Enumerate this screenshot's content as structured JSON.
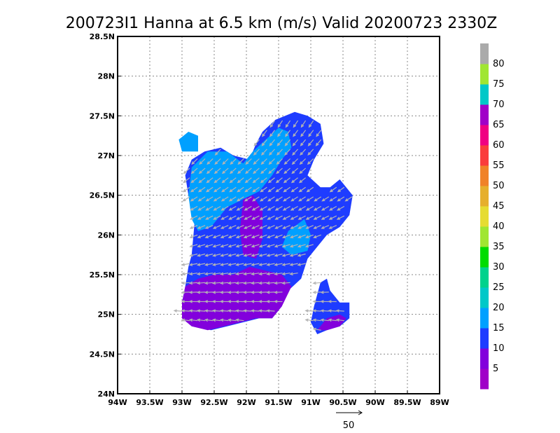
{
  "chart_data": {
    "type": "wind-vector-field",
    "title": "200723I1 Hanna at 6.5 km (m/s) Valid 20200723 2330Z",
    "xlim": [
      -94,
      -89
    ],
    "ylim": [
      24,
      28.5
    ],
    "x_ticks": [
      -94,
      -93.5,
      -93,
      -92.5,
      -92,
      -91.5,
      -91,
      -90.5,
      -90,
      -89.5,
      -89
    ],
    "x_tick_labels": [
      "94W",
      "93.5W",
      "93W",
      "92.5W",
      "92W",
      "91.5W",
      "91W",
      "90.5W",
      "90W",
      "89.5W",
      "89W"
    ],
    "y_ticks": [
      24,
      24.5,
      25,
      25.5,
      26,
      26.5,
      27,
      27.5,
      28,
      28.5
    ],
    "y_tick_labels": [
      "24N",
      "24.5N",
      "25N",
      "25.5N",
      "26N",
      "26.5N",
      "27N",
      "27.5N",
      "28N",
      "28.5N"
    ],
    "grid": true,
    "colorbar": {
      "boundary_labels": [
        "5",
        "10",
        "15",
        "20",
        "25",
        "30",
        "35",
        "40",
        "45",
        "50",
        "55",
        "60",
        "65",
        "70",
        "75",
        "80"
      ],
      "colors": [
        "#a000c8",
        "#8200dc",
        "#1e3cff",
        "#00a0ff",
        "#00c8c8",
        "#00d28c",
        "#00dc00",
        "#a0e632",
        "#e6dc32",
        "#e6af2d",
        "#f08228",
        "#fa3c3c",
        "#f00082",
        "#a000c8",
        "#00c8c8",
        "#a0e632",
        "#aaaaaa"
      ]
    },
    "reference_vector": {
      "label": "50",
      "speed": 50
    },
    "regions": [
      {
        "name": "tropical-storm-echo-main",
        "speed_class": "10-15",
        "color": "#1e3cff",
        "polygon": [
          [
            -92.9,
            25.6
          ],
          [
            -92.85,
            25.75
          ],
          [
            -92.8,
            26.2
          ],
          [
            -92.9,
            26.5
          ],
          [
            -92.95,
            26.75
          ],
          [
            -92.85,
            26.95
          ],
          [
            -92.65,
            27.05
          ],
          [
            -92.4,
            27.1
          ],
          [
            -92.2,
            27.0
          ],
          [
            -91.95,
            26.95
          ],
          [
            -91.85,
            27.15
          ],
          [
            -91.75,
            27.3
          ],
          [
            -91.55,
            27.45
          ],
          [
            -91.25,
            27.55
          ],
          [
            -91.05,
            27.5
          ],
          [
            -90.85,
            27.4
          ],
          [
            -90.8,
            27.15
          ],
          [
            -90.95,
            26.95
          ],
          [
            -91.05,
            26.75
          ],
          [
            -90.85,
            26.6
          ],
          [
            -90.7,
            26.6
          ],
          [
            -90.55,
            26.7
          ],
          [
            -90.35,
            26.5
          ],
          [
            -90.4,
            26.25
          ],
          [
            -90.55,
            26.1
          ],
          [
            -90.75,
            26.0
          ],
          [
            -90.9,
            25.85
          ],
          [
            -91.05,
            25.7
          ],
          [
            -91.15,
            25.45
          ],
          [
            -91.35,
            25.3
          ],
          [
            -91.45,
            25.1
          ],
          [
            -91.6,
            24.95
          ],
          [
            -91.8,
            24.95
          ],
          [
            -92.05,
            24.9
          ],
          [
            -92.3,
            24.85
          ],
          [
            -92.55,
            24.8
          ],
          [
            -92.8,
            24.85
          ],
          [
            -93.0,
            24.95
          ],
          [
            -93.0,
            25.15
          ],
          [
            -92.95,
            25.35
          ]
        ]
      },
      {
        "name": "southeast-band",
        "speed_class": "10-15",
        "color": "#1e3cff",
        "polygon": [
          [
            -90.95,
            25.1
          ],
          [
            -90.85,
            25.4
          ],
          [
            -90.75,
            25.45
          ],
          [
            -90.7,
            25.3
          ],
          [
            -90.55,
            25.15
          ],
          [
            -90.4,
            25.15
          ],
          [
            -90.4,
            24.95
          ],
          [
            -90.55,
            24.85
          ],
          [
            -90.75,
            24.8
          ],
          [
            -90.9,
            24.75
          ],
          [
            -91.0,
            24.9
          ]
        ]
      },
      {
        "name": "northwest-patches",
        "speed_class": "15-20",
        "color": "#00a0ff",
        "polygon": [
          [
            -93.05,
            27.2
          ],
          [
            -92.9,
            27.3
          ],
          [
            -92.75,
            27.25
          ],
          [
            -92.75,
            27.05
          ],
          [
            -92.85,
            27.05
          ],
          [
            -93.0,
            27.05
          ]
        ]
      },
      {
        "name": "northern-light-blue-area",
        "speed_class": "15-20",
        "color": "#00a0ff",
        "polygon": [
          [
            -92.9,
            26.5
          ],
          [
            -92.85,
            26.85
          ],
          [
            -92.6,
            27.05
          ],
          [
            -92.3,
            27.05
          ],
          [
            -92.05,
            26.9
          ],
          [
            -91.9,
            27.05
          ],
          [
            -91.7,
            27.2
          ],
          [
            -91.5,
            27.35
          ],
          [
            -91.35,
            27.3
          ],
          [
            -91.3,
            27.1
          ],
          [
            -91.45,
            26.95
          ],
          [
            -91.6,
            26.75
          ],
          [
            -91.8,
            26.55
          ],
          [
            -92.05,
            26.45
          ],
          [
            -92.3,
            26.35
          ],
          [
            -92.55,
            26.1
          ],
          [
            -92.75,
            26.05
          ],
          [
            -92.85,
            26.2
          ]
        ]
      },
      {
        "name": "central-light-blue-area",
        "speed_class": "15-20",
        "color": "#00a0ff",
        "polygon": [
          [
            -91.1,
            26.2
          ],
          [
            -91.0,
            26.0
          ],
          [
            -91.05,
            25.8
          ],
          [
            -91.3,
            25.75
          ],
          [
            -91.45,
            25.85
          ],
          [
            -91.35,
            26.05
          ]
        ]
      },
      {
        "name": "southern-core",
        "speed_class": "5-10",
        "color": "#8200dc",
        "polygon": [
          [
            -93.0,
            25.15
          ],
          [
            -92.95,
            25.35
          ],
          [
            -92.75,
            25.45
          ],
          [
            -92.5,
            25.5
          ],
          [
            -92.2,
            25.5
          ],
          [
            -91.95,
            25.6
          ],
          [
            -91.7,
            25.55
          ],
          [
            -91.45,
            25.5
          ],
          [
            -91.3,
            25.35
          ],
          [
            -91.45,
            25.1
          ],
          [
            -91.6,
            24.95
          ],
          [
            -91.85,
            24.95
          ],
          [
            -92.1,
            24.9
          ],
          [
            -92.35,
            24.85
          ],
          [
            -92.6,
            24.8
          ],
          [
            -92.85,
            24.85
          ],
          [
            -93.0,
            24.95
          ]
        ]
      },
      {
        "name": "central-core",
        "speed_class": "5-10",
        "color": "#8200dc",
        "polygon": [
          [
            -92.05,
            26.45
          ],
          [
            -91.9,
            26.5
          ],
          [
            -91.75,
            26.3
          ],
          [
            -91.75,
            25.95
          ],
          [
            -91.85,
            25.7
          ],
          [
            -92.05,
            25.75
          ],
          [
            -92.1,
            26.05
          ]
        ]
      },
      {
        "name": "southeast-core",
        "speed_class": "5-10",
        "color": "#8200dc",
        "polygon": [
          [
            -90.9,
            24.8
          ],
          [
            -90.75,
            24.95
          ],
          [
            -90.55,
            25.0
          ],
          [
            -90.45,
            24.95
          ],
          [
            -90.55,
            24.85
          ],
          [
            -90.75,
            24.8
          ]
        ]
      }
    ]
  }
}
